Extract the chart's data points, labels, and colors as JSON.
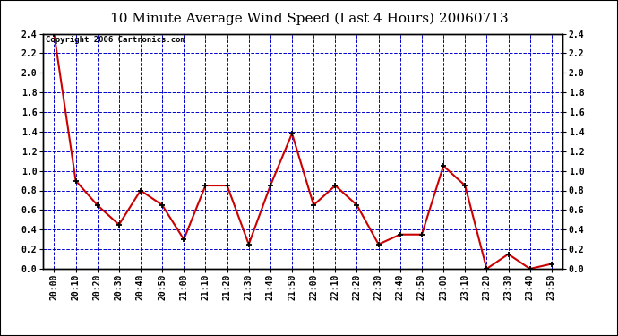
{
  "title": "10 Minute Average Wind Speed (Last 4 Hours) 20060713",
  "copyright_text": "Copyright 2006 Cartronics.com",
  "x_labels": [
    "20:00",
    "20:10",
    "20:20",
    "20:30",
    "20:40",
    "20:50",
    "21:00",
    "21:10",
    "21:20",
    "21:30",
    "21:40",
    "21:50",
    "22:00",
    "22:10",
    "22:20",
    "22:30",
    "22:40",
    "22:50",
    "23:00",
    "23:10",
    "23:20",
    "23:30",
    "23:40",
    "23:50"
  ],
  "y_values": [
    2.4,
    0.9,
    0.65,
    0.45,
    0.8,
    0.65,
    0.3,
    0.85,
    0.85,
    0.25,
    0.85,
    1.38,
    0.65,
    0.85,
    0.65,
    0.25,
    0.35,
    0.35,
    1.05,
    0.85,
    0.0,
    0.15,
    0.0,
    0.05
  ],
  "line_color": "#cc0000",
  "marker_color": "#000000",
  "background_color": "#ffffff",
  "plot_bg_color": "#ffffff",
  "grid_color": "#0000cc",
  "ylim": [
    0.0,
    2.4
  ],
  "yticks": [
    0.0,
    0.2,
    0.4,
    0.6,
    0.8,
    1.0,
    1.2,
    1.4,
    1.6,
    1.8,
    2.0,
    2.2,
    2.4
  ],
  "title_fontsize": 11,
  "tick_fontsize": 7,
  "copyright_fontsize": 6.5
}
